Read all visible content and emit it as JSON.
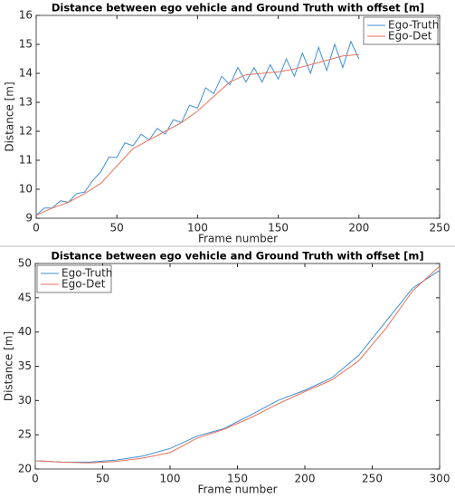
{
  "chart_data": [
    {
      "type": "line",
      "title": "Distance between ego vehicle and Ground Truth with offset [m]",
      "x_label": "Frame number",
      "y_label": "Distance [m]",
      "xlim": [
        0,
        250
      ],
      "xticks": [
        0,
        50,
        100,
        150,
        200,
        250
      ],
      "ylim": [
        9,
        16
      ],
      "yticks": [
        9,
        10,
        11,
        12,
        13,
        14,
        15,
        16
      ],
      "legend": "upper right",
      "series": [
        {
          "name": "Ego-Truth",
          "color": "#3d8fd6",
          "x": [
            0,
            5,
            10,
            15,
            20,
            25,
            30,
            35,
            40,
            45,
            50,
            55,
            60,
            65,
            70,
            75,
            80,
            85,
            90,
            95,
            100,
            105,
            110,
            115,
            120,
            125,
            130,
            135,
            140,
            145,
            150,
            155,
            160,
            165,
            170,
            175,
            180,
            185,
            190,
            195,
            200
          ],
          "values": [
            9.1,
            9.35,
            9.35,
            9.6,
            9.55,
            9.85,
            9.9,
            10.3,
            10.6,
            11.1,
            11.1,
            11.6,
            11.5,
            11.9,
            11.7,
            12.1,
            11.9,
            12.4,
            12.3,
            12.9,
            12.8,
            13.5,
            13.3,
            13.9,
            13.6,
            14.2,
            13.7,
            14.2,
            13.7,
            14.3,
            13.8,
            14.5,
            13.9,
            14.7,
            14.0,
            14.9,
            14.1,
            15.0,
            14.2,
            15.1,
            14.5
          ]
        },
        {
          "name": "Ego-Det",
          "color": "#e8735a",
          "x": [
            0,
            10,
            20,
            30,
            40,
            50,
            60,
            70,
            80,
            90,
            100,
            110,
            120,
            130,
            140,
            150,
            160,
            170,
            180,
            190,
            200
          ],
          "values": [
            9.1,
            9.35,
            9.55,
            9.85,
            10.2,
            10.8,
            11.4,
            11.7,
            12.0,
            12.3,
            12.7,
            13.2,
            13.7,
            13.95,
            14.0,
            14.05,
            14.15,
            14.3,
            14.45,
            14.6,
            14.65
          ]
        }
      ]
    },
    {
      "type": "line",
      "title": "Distance between ego vehicle and Ground Truth with offset [m]",
      "x_label": "Frame number",
      "y_label": "Distance [m]",
      "xlim": [
        0,
        300
      ],
      "xticks": [
        0,
        50,
        100,
        150,
        200,
        250,
        300
      ],
      "ylim": [
        20,
        50
      ],
      "yticks": [
        20,
        25,
        30,
        35,
        40,
        45,
        50
      ],
      "legend": "upper left",
      "series": [
        {
          "name": "Ego-Truth",
          "color": "#3d8fd6",
          "x": [
            0,
            20,
            40,
            60,
            80,
            100,
            120,
            140,
            160,
            180,
            200,
            220,
            240,
            260,
            280,
            300
          ],
          "values": [
            21.2,
            21.0,
            21.0,
            21.3,
            21.9,
            23.0,
            24.8,
            25.9,
            27.9,
            30.0,
            31.5,
            33.3,
            36.6,
            41.5,
            46.4,
            49.0
          ]
        },
        {
          "name": "Ego-Det",
          "color": "#e8735a",
          "x": [
            0,
            20,
            40,
            60,
            80,
            100,
            120,
            140,
            160,
            180,
            200,
            220,
            240,
            260,
            280,
            300
          ],
          "values": [
            21.2,
            21.0,
            20.9,
            21.1,
            21.6,
            22.4,
            24.5,
            25.8,
            27.5,
            29.5,
            31.3,
            33.0,
            35.8,
            40.5,
            46.0,
            49.6
          ]
        }
      ]
    }
  ]
}
